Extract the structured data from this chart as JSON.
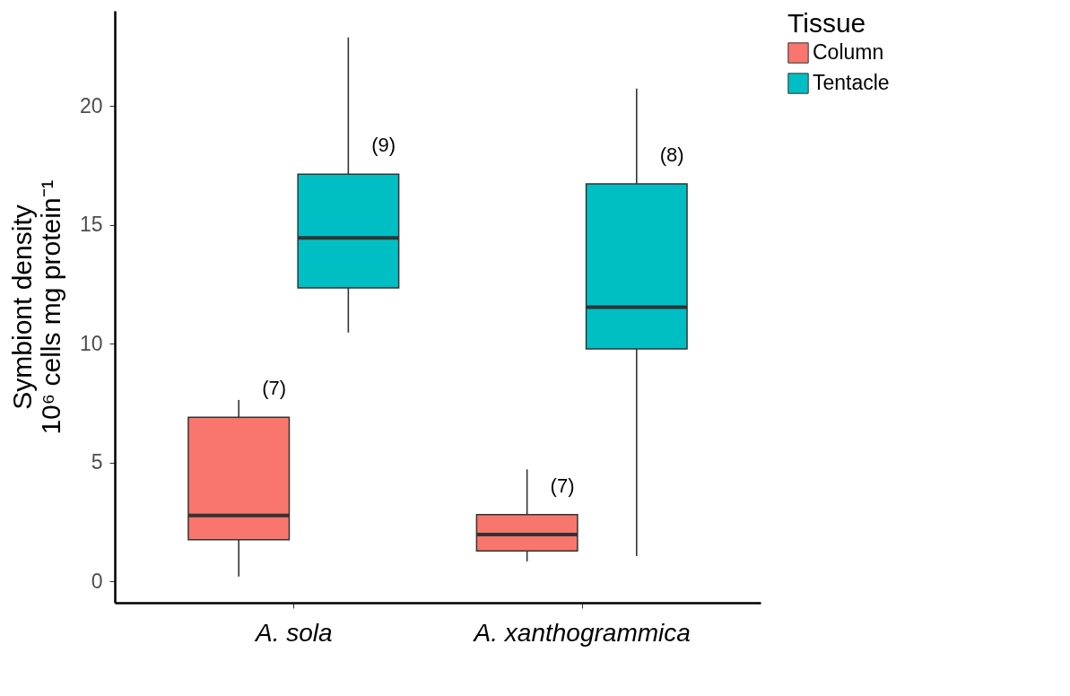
{
  "chart_data": {
    "type": "box",
    "ylabel": [
      "Symbiont density",
      "10⁶ cells mg protein⁻¹"
    ],
    "legend_title": "Tissue",
    "legend": "right",
    "grid": false,
    "categories": [
      "A. sola",
      "A. xanthogrammica"
    ],
    "ylim": [
      -0.9,
      24
    ],
    "yticks": [
      0,
      5,
      10,
      15,
      20
    ],
    "series": [
      {
        "name": "Column",
        "color": "#f8766d",
        "boxes": [
          {
            "low": 0.2,
            "q1": 1.75,
            "median": 2.77,
            "q3": 6.9,
            "high": 7.63
          },
          {
            "low": 0.84,
            "q1": 1.28,
            "median": 1.97,
            "q3": 2.81,
            "high": 4.71
          }
        ]
      },
      {
        "name": "Tentacle",
        "color": "#00bfc4",
        "boxes": [
          {
            "low": 10.47,
            "q1": 12.34,
            "median": 14.45,
            "q3": 17.12,
            "high": 22.88
          },
          {
            "low": 1.06,
            "q1": 9.78,
            "median": 11.53,
            "q3": 16.72,
            "high": 20.73
          }
        ]
      }
    ],
    "annotations": [
      "(7)",
      "(7)",
      "(9)",
      "(8)"
    ]
  }
}
